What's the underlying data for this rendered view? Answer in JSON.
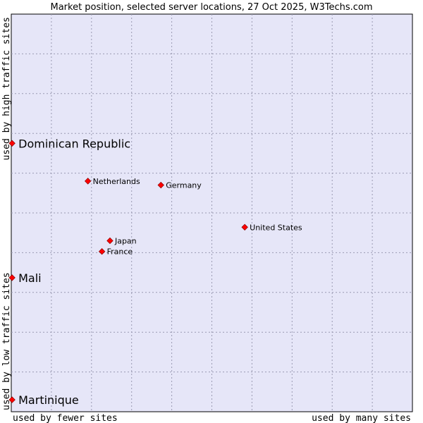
{
  "chart_data": {
    "type": "scatter",
    "title": "Market position, selected server locations, 27 Oct 2025, W3Techs.com",
    "xlabel_left": "used by fewer sites",
    "xlabel_right": "used by many sites",
    "ylabel_bottom": "used by low traffic sites",
    "ylabel_top": "used by high traffic sites",
    "grid": true,
    "xlim": [
      0,
      10
    ],
    "ylim": [
      0,
      10
    ],
    "colors": {
      "plot_bg": "#e6e6f8",
      "grid": "#9a9ab2",
      "border": "#000000",
      "point": "#ff0000",
      "point_stroke": "#8a0000"
    },
    "points": [
      {
        "label": "Dominican Republic",
        "x": 0.02,
        "y": 6.75,
        "size": "large"
      },
      {
        "label": "Netherlands",
        "x": 1.91,
        "y": 5.8,
        "size": "small"
      },
      {
        "label": "Germany",
        "x": 3.73,
        "y": 5.7,
        "size": "small"
      },
      {
        "label": "United States",
        "x": 5.82,
        "y": 4.64,
        "size": "small"
      },
      {
        "label": "Japan",
        "x": 2.46,
        "y": 4.3,
        "size": "small"
      },
      {
        "label": "France",
        "x": 2.26,
        "y": 4.03,
        "size": "small"
      },
      {
        "label": "Mali",
        "x": 0.02,
        "y": 3.37,
        "size": "large"
      },
      {
        "label": "Martinique",
        "x": 0.02,
        "y": 0.3,
        "size": "large"
      }
    ]
  }
}
